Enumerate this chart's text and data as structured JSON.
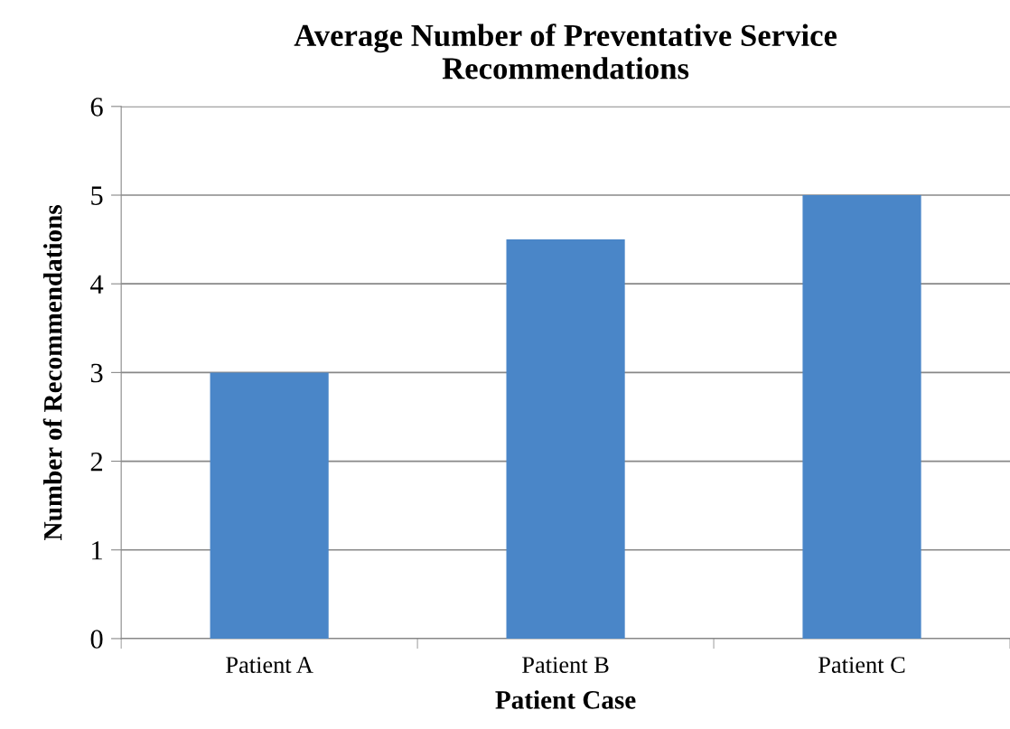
{
  "chart_data": {
    "type": "bar",
    "title": "Average Number of Preventative Service\nRecommendations",
    "xlabel": "Patient Case",
    "ylabel": "Number of Recommendations",
    "categories": [
      "Patient A",
      "Patient B",
      "Patient C"
    ],
    "values": [
      3,
      4.5,
      5
    ],
    "color": "#4a86c8",
    "ylim": [
      0,
      6
    ],
    "yticks": [
      0,
      1,
      2,
      3,
      4,
      5,
      6
    ],
    "grid": "y",
    "legend": false
  }
}
